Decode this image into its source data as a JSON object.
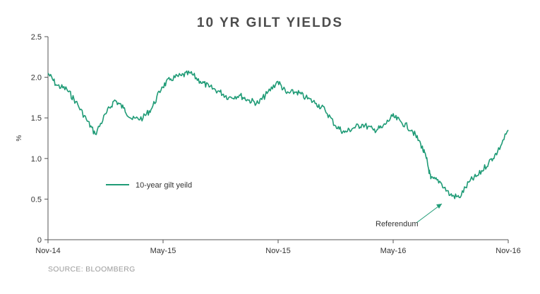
{
  "colors": {
    "series": "#1f9b76",
    "axis": "#555555",
    "text": "#333333",
    "title": "#4d4d4d",
    "source": "#9a9a9a"
  },
  "source_text": "SOURCE: BLOOMBERG",
  "chart_data": {
    "type": "line",
    "title": "10 YR GILT YIELDS",
    "xlabel": "",
    "ylabel": "%",
    "ylim": [
      0,
      2.5
    ],
    "yticks": [
      "0",
      "0.5",
      "1.0",
      "1.5",
      "2.0",
      "2.5"
    ],
    "yticks_values": [
      0,
      0.5,
      1.0,
      1.5,
      2.0,
      2.5
    ],
    "xticks": [
      "Nov-14",
      "May-15",
      "Nov-15",
      "May-16",
      "Nov-16"
    ],
    "xlim": [
      "2014-11",
      "2016-11"
    ],
    "grid": false,
    "legend": {
      "position": "left-middle",
      "entries": [
        "10-year gilt yeild"
      ]
    },
    "annotations": [
      {
        "text": "Referendum",
        "x": "2016-06-24",
        "y": 0.5
      }
    ],
    "series": [
      {
        "name": "10-year gilt yeild",
        "x": [
          "2014-11-01",
          "2014-11-15",
          "2014-12-01",
          "2014-12-15",
          "2015-01-01",
          "2015-01-15",
          "2015-02-01",
          "2015-02-15",
          "2015-03-01",
          "2015-03-15",
          "2015-04-01",
          "2015-04-15",
          "2015-05-01",
          "2015-05-15",
          "2015-06-01",
          "2015-06-15",
          "2015-07-01",
          "2015-07-15",
          "2015-08-01",
          "2015-08-15",
          "2015-09-01",
          "2015-09-15",
          "2015-10-01",
          "2015-10-15",
          "2015-11-01",
          "2015-11-15",
          "2015-12-01",
          "2015-12-15",
          "2016-01-01",
          "2016-01-15",
          "2016-02-01",
          "2016-02-15",
          "2016-03-01",
          "2016-03-15",
          "2016-04-01",
          "2016-04-15",
          "2016-05-01",
          "2016-05-15",
          "2016-06-01",
          "2016-06-15",
          "2016-06-24",
          "2016-07-01",
          "2016-07-15",
          "2016-08-01",
          "2016-08-15",
          "2016-09-01",
          "2016-09-15",
          "2016-10-01",
          "2016-10-15",
          "2016-11-01"
        ],
        "values": [
          2.05,
          1.9,
          1.85,
          1.7,
          1.48,
          1.3,
          1.55,
          1.72,
          1.62,
          1.48,
          1.5,
          1.62,
          1.88,
          1.98,
          2.02,
          2.05,
          1.95,
          1.88,
          1.82,
          1.75,
          1.78,
          1.72,
          1.68,
          1.8,
          1.95,
          1.8,
          1.82,
          1.75,
          1.68,
          1.6,
          1.4,
          1.32,
          1.38,
          1.42,
          1.35,
          1.38,
          1.52,
          1.45,
          1.35,
          1.18,
          1.0,
          0.75,
          0.72,
          0.55,
          0.52,
          0.72,
          0.8,
          0.95,
          1.08,
          1.35
        ]
      }
    ]
  }
}
